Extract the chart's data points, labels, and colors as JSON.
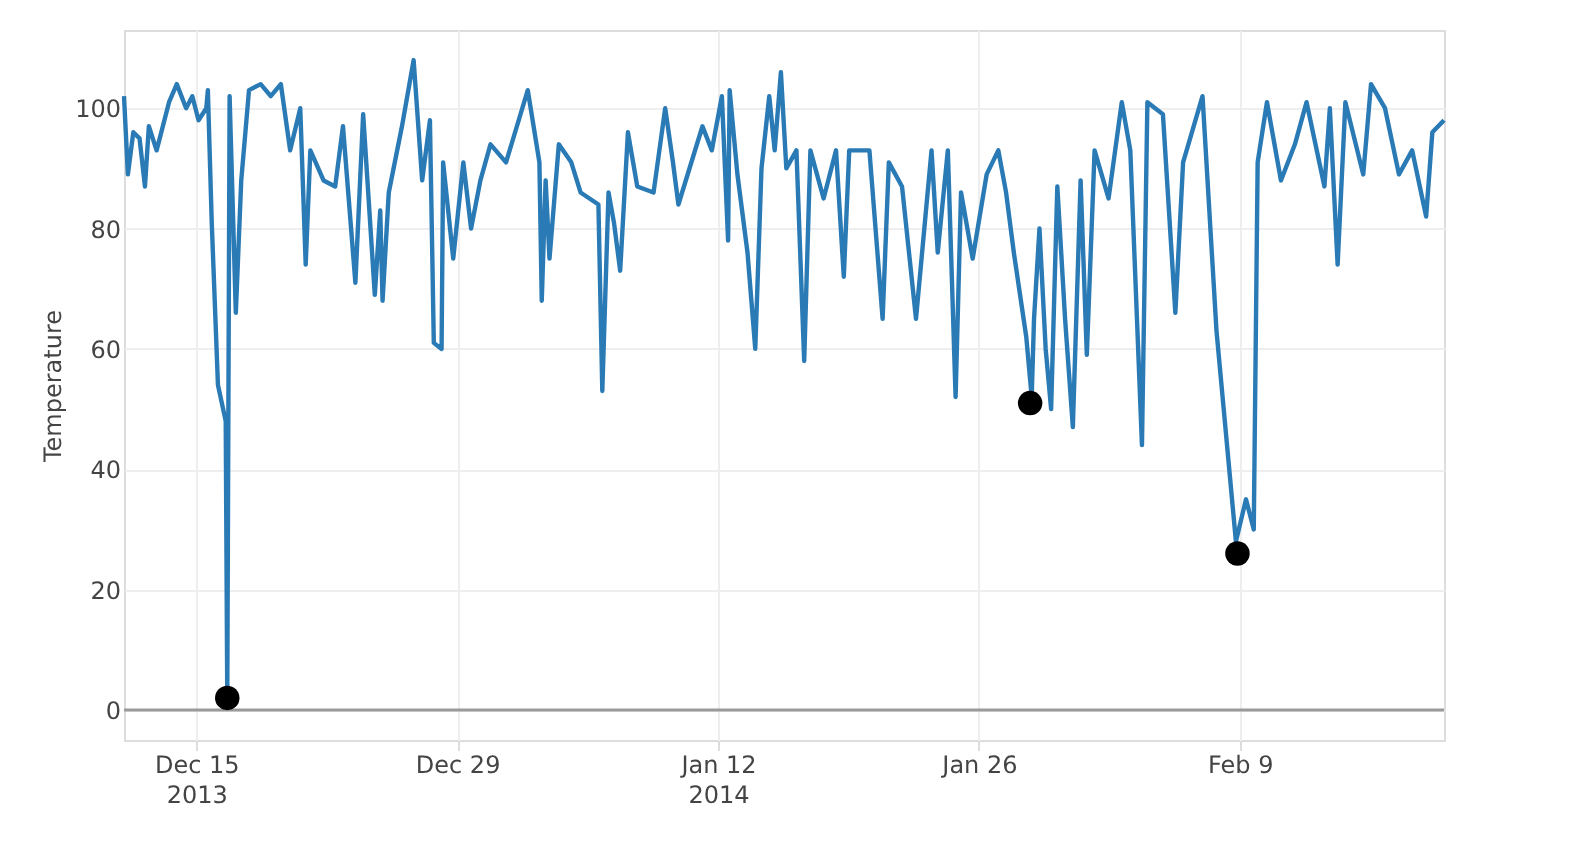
{
  "chart_data": {
    "type": "line",
    "ylabel": "Temperature",
    "xlim": [
      "2013-12-11T03:00",
      "2014-02-19T23:00"
    ],
    "ylim": [
      -5,
      113
    ],
    "xticks": [
      {
        "value": "2013-12-15",
        "label": "Dec 15\n2013"
      },
      {
        "value": "2013-12-29",
        "label": "Dec 29"
      },
      {
        "value": "2014-01-12",
        "label": "Jan 12\n2014"
      },
      {
        "value": "2014-01-26",
        "label": "Jan 26"
      },
      {
        "value": "2014-02-09",
        "label": "Feb 9"
      }
    ],
    "yticks": [
      0,
      20,
      40,
      60,
      80,
      100
    ],
    "grid": true,
    "ref_lines": [
      {
        "axis": "y",
        "value": 0,
        "color": "#9a9a9a"
      }
    ],
    "series": [
      {
        "color": "#2a7ab5",
        "x": [
          "2013-12-11T03:00",
          "2013-12-11T08:00",
          "2013-12-11T15:00",
          "2013-12-11T23:00",
          "2013-12-12T06:00",
          "2013-12-12T11:00",
          "2013-12-12T21:00",
          "2013-12-13T13:00",
          "2013-12-13T23:00",
          "2013-12-14T11:00",
          "2013-12-14T19:00",
          "2013-12-15T03:00",
          "2013-12-15T13:00",
          "2013-12-15T15:00",
          "2013-12-15T20:00",
          "2013-12-16T04:00",
          "2013-12-16T14:00",
          "2013-12-16T16:00",
          "2013-12-16T19:00",
          "2013-12-17T03:00",
          "2013-12-17T10:00",
          "2013-12-17T20:00",
          "2013-12-18T11:00",
          "2013-12-19T00:00",
          "2013-12-19T13:00",
          "2013-12-20T01:00",
          "2013-12-20T14:00",
          "2013-12-20T21:00",
          "2013-12-21T03:00",
          "2013-12-21T20:00",
          "2013-12-22T11:00",
          "2013-12-22T21:00",
          "2013-12-23T13:00",
          "2013-12-23T23:00",
          "2013-12-24T14:00",
          "2013-12-24T21:00",
          "2013-12-25T00:00",
          "2013-12-25T08:00",
          "2013-12-26T01:00",
          "2013-12-26T16:00",
          "2013-12-27T03:00",
          "2013-12-27T13:00",
          "2013-12-27T18:00",
          "2013-12-28T04:00",
          "2013-12-28T06:00",
          "2013-12-28T19:00",
          "2013-12-29T08:00",
          "2013-12-29T18:00",
          "2013-12-30T06:00",
          "2013-12-30T19:00",
          "2013-12-31T15:00",
          "2014-01-01T19:00",
          "2014-01-02T10:00",
          "2014-01-02T13:00",
          "2014-01-02T18:00",
          "2014-01-02T23:00",
          "2014-01-03T11:00",
          "2014-01-04T03:00",
          "2014-01-04T15:00",
          "2014-01-05T14:00",
          "2014-01-05T19:00",
          "2014-01-06T03:00",
          "2014-01-06T10:00",
          "2014-01-06T18:00",
          "2014-01-07T04:00",
          "2014-01-07T16:00",
          "2014-01-08T13:00",
          "2014-01-09T04:00",
          "2014-01-09T14:00",
          "2014-01-09T21:00",
          "2014-01-11T04:00",
          "2014-01-11T16:00",
          "2014-01-12T05:00",
          "2014-01-12T13:00",
          "2014-01-12T15:00",
          "2014-01-13T01:00",
          "2014-01-13T14:00",
          "2014-01-14T00:00",
          "2014-01-14T08:00",
          "2014-01-14T18:00",
          "2014-01-15T01:00",
          "2014-01-15T09:00",
          "2014-01-15T16:00",
          "2014-01-16T05:00",
          "2014-01-16T15:00",
          "2014-01-16T23:00",
          "2014-01-17T16:00",
          "2014-01-18T08:00",
          "2014-01-18T18:00",
          "2014-01-19T01:00",
          "2014-01-20T03:00",
          "2014-01-20T20:00",
          "2014-01-21T04:00",
          "2014-01-21T21:00",
          "2014-01-22T15:00",
          "2014-01-23T11:00",
          "2014-01-23T19:00",
          "2014-01-24T08:00",
          "2014-01-24T18:00",
          "2014-01-25T01:00",
          "2014-01-25T16:00",
          "2014-01-26T10:00",
          "2014-01-27T01:00",
          "2014-01-27T11:00",
          "2014-01-27T21:00",
          "2014-01-28T13:00",
          "2014-01-28T20:00",
          "2014-01-28T23:00",
          "2014-01-29T06:00",
          "2014-01-29T14:00",
          "2014-01-29T21:00",
          "2014-01-30T05:00",
          "2014-01-30T15:00",
          "2014-01-31T01:00",
          "2014-01-31T11:00",
          "2014-01-31T19:00",
          "2014-02-01T05:00",
          "2014-02-01T23:00",
          "2014-02-02T16:00",
          "2014-02-03T03:00",
          "2014-02-03T18:00",
          "2014-02-04T01:00",
          "2014-02-04T21:00",
          "2014-02-05T13:00",
          "2014-02-05T23:00",
          "2014-02-07T00:00",
          "2014-02-07T18:00",
          "2014-02-08T19:00",
          "2014-02-09T08:00",
          "2014-02-09T18:00",
          "2014-02-09T23:00",
          "2014-02-10T11:00",
          "2014-02-11T05:00",
          "2014-02-11T23:00",
          "2014-02-12T14:00",
          "2014-02-13T13:00",
          "2014-02-13T20:00",
          "2014-02-14T06:00",
          "2014-02-14T16:00",
          "2014-02-15T15:00",
          "2014-02-16T01:00",
          "2014-02-16T19:00",
          "2014-02-17T13:00",
          "2014-02-18T06:00",
          "2014-02-19T00:00",
          "2014-02-19T08:00",
          "2014-02-19T23:00"
        ],
        "values": [
          102,
          89,
          96,
          95,
          87,
          97,
          93,
          101,
          104,
          100,
          102,
          98,
          100,
          103,
          81,
          54,
          48,
          2,
          102,
          66,
          88,
          103,
          104,
          102,
          104,
          93,
          100,
          74,
          93,
          88,
          87,
          97,
          71,
          99,
          69,
          83,
          68,
          86,
          97,
          108,
          88,
          98,
          61,
          60,
          91,
          75,
          91,
          80,
          88,
          94,
          91,
          103,
          91,
          68,
          88,
          75,
          94,
          91,
          86,
          84,
          53,
          86,
          81,
          73,
          96,
          87,
          86,
          100,
          91,
          84,
          97,
          93,
          102,
          78,
          103,
          89,
          76,
          60,
          90,
          102,
          93,
          106,
          90,
          93,
          58,
          93,
          85,
          93,
          72,
          93,
          93,
          65,
          91,
          87,
          65,
          93,
          76,
          93,
          52,
          86,
          75,
          89,
          93,
          86,
          76,
          62,
          52,
          65,
          80,
          60,
          50,
          87,
          65,
          47,
          88,
          59,
          93,
          85,
          101,
          93,
          44,
          101,
          99,
          66,
          91,
          102,
          63,
          28,
          35,
          30,
          91,
          101,
          88,
          94,
          101,
          87,
          100,
          74,
          101,
          89,
          104,
          100,
          89,
          93,
          82,
          96,
          98
        ]
      },
      {
        "type": "scatter",
        "color": "#000000",
        "marker": "circle",
        "x": [
          "2013-12-16T16:00",
          "2014-01-28T18:00",
          "2014-02-08T21:00"
        ],
        "values": [
          2,
          51,
          26
        ]
      }
    ]
  }
}
